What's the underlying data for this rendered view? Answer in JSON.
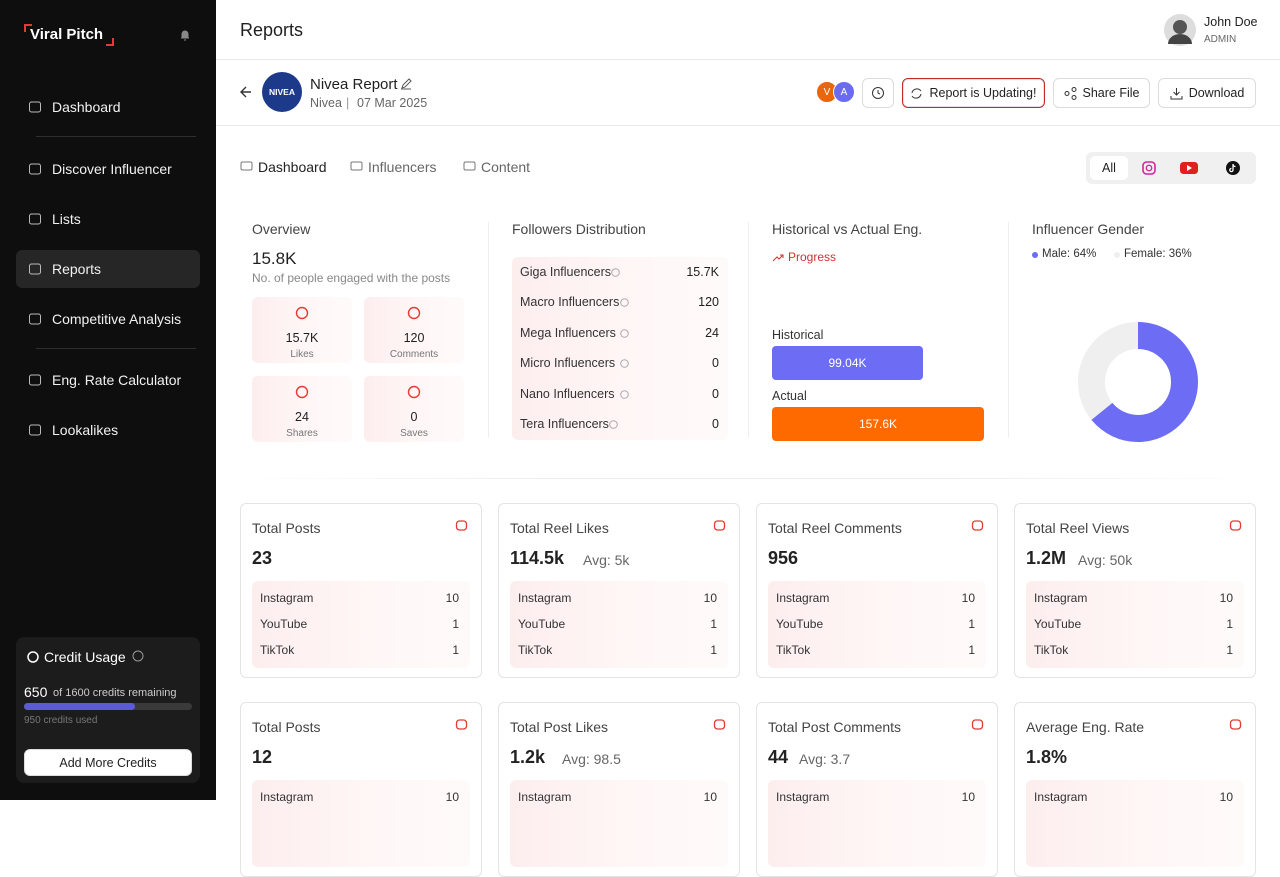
{
  "sidebar": {
    "brand": "Viral Pitch",
    "nav": [
      "Dashboard",
      "Discover Influencer",
      "Lists",
      "Reports",
      "Competitive Analysis",
      "Eng. Rate Calculator",
      "Lookalikes"
    ],
    "active": 3,
    "credit": {
      "title": "Credit Usage",
      "remaining": "650",
      "remaining_text": "of 1600 credits remaining",
      "used": "950 credits used",
      "button": "Add More Credits"
    }
  },
  "header": {
    "title": "Reports",
    "user_name": "John Doe",
    "user_role": "ADMIN"
  },
  "report": {
    "logo": "NIVEA",
    "name": "Nivea Report",
    "brand": "Nivea",
    "date": "07 Mar 2025",
    "avatars": [
      "V",
      "A"
    ],
    "status": "Report is Updating!",
    "share": "Share File",
    "download": "Download"
  },
  "tabs": [
    "Dashboard",
    "Influencers",
    "Content"
  ],
  "platform_filter": "All",
  "overview": {
    "title": "Overview",
    "value": "15.8K",
    "caption": "No. of people engaged with the posts",
    "stats": [
      {
        "value": "15.7K",
        "label": "Likes"
      },
      {
        "value": "120",
        "label": "Comments"
      },
      {
        "value": "24",
        "label": "Shares"
      },
      {
        "value": "0",
        "label": "Saves"
      }
    ]
  },
  "followers": {
    "title": "Followers Distribution",
    "rows": [
      [
        "Giga Influencers",
        "15.7K"
      ],
      [
        "Macro Influencers",
        "120"
      ],
      [
        "Mega Influencers",
        "24"
      ],
      [
        "Micro Influencers",
        "0"
      ],
      [
        "Nano Influencers",
        "0"
      ],
      [
        "Tera Influencers",
        "0"
      ]
    ]
  },
  "historical": {
    "title": "Historical vs Actual Eng.",
    "trend": "Progress",
    "rows": [
      {
        "label": "Historical",
        "value": "99.04K"
      },
      {
        "label": "Actual",
        "value": "157.6K"
      }
    ]
  },
  "gender": {
    "title": "Influencer Gender",
    "legend": [
      "Male: 64%",
      "Female: 36%"
    ]
  },
  "cards": [
    {
      "title": "Total Posts",
      "value": "23",
      "rows": [
        [
          "Instagram",
          "10"
        ],
        [
          "YouTube",
          "1"
        ],
        [
          "TikTok",
          "1"
        ]
      ]
    },
    {
      "title": "Total Reel Likes",
      "value": "114.5k",
      "avg": "Avg: 5k",
      "rows": [
        [
          "Instagram",
          "10"
        ],
        [
          "YouTube",
          "1"
        ],
        [
          "TikTok",
          "1"
        ]
      ]
    },
    {
      "title": "Total Reel Comments",
      "value": "956",
      "rows": [
        [
          "Instagram",
          "10"
        ],
        [
          "YouTube",
          "1"
        ],
        [
          "TikTok",
          "1"
        ]
      ]
    },
    {
      "title": "Total Reel Views",
      "value": "1.2M",
      "avg": "Avg: 50k",
      "rows": [
        [
          "Instagram",
          "10"
        ],
        [
          "YouTube",
          "1"
        ],
        [
          "TikTok",
          "1"
        ]
      ]
    },
    {
      "title": "Total Posts",
      "value": "12",
      "rows": [
        [
          "Instagram",
          "10"
        ]
      ]
    },
    {
      "title": "Total Post Likes",
      "value": "1.2k",
      "avg": "Avg: 98.5",
      "rows": [
        [
          "Instagram",
          "10"
        ]
      ]
    },
    {
      "title": "Total Post Comments",
      "value": "44",
      "avg": "Avg: 3.7",
      "rows": [
        [
          "Instagram",
          "10"
        ]
      ]
    },
    {
      "title": "Average Eng. Rate",
      "value": "1.8%",
      "rows": [
        [
          "Instagram",
          "10"
        ]
      ]
    }
  ]
}
